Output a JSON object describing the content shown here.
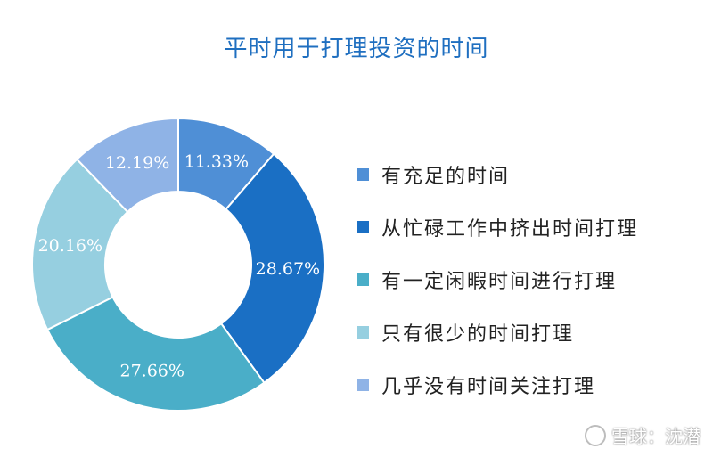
{
  "chart_data": {
    "type": "pie",
    "title": "平时用于打理投资的时间",
    "legend_position": "right",
    "categories": [
      "有充足的时间",
      "从忙碌工作中挤出时间打理",
      "有一定闲暇时间进行打理",
      "只有很少的时间打理",
      "几乎没有时间关注打理"
    ],
    "values": [
      11.33,
      28.67,
      27.66,
      20.16,
      12.19
    ],
    "value_labels": [
      "11.33%",
      "28.67%",
      "27.66%",
      "20.16%",
      "12.19%"
    ],
    "colors": [
      "#4f8fd6",
      "#1a6fc4",
      "#4aaec8",
      "#96cfe0",
      "#8fb3e6"
    ]
  },
  "watermark": {
    "text": "雪球：沈潜"
  }
}
